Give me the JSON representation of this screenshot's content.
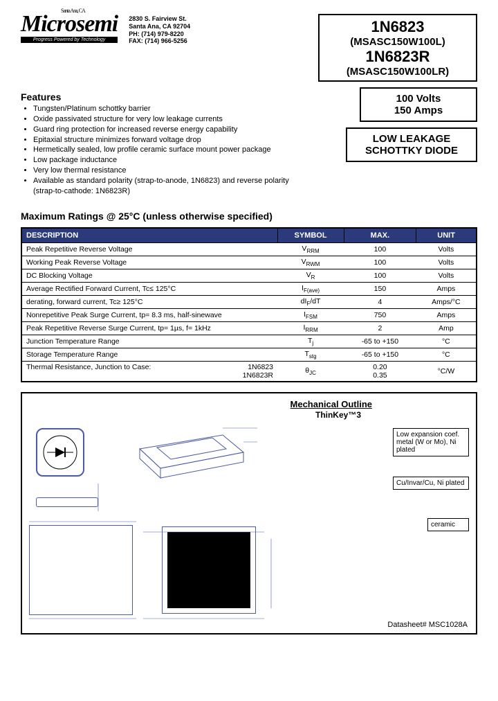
{
  "company": {
    "city_tag": "Santa Ana, CA",
    "name": "Microsemi",
    "tagline": "Progress Powered by Technology",
    "address_l1": "2830 S. Fairview St.",
    "address_l2": "Santa Ana, CA 92704",
    "phone": "PH: (714) 979-8220",
    "fax": "FAX: (714) 966-5256"
  },
  "parts": {
    "p1": "1N6823",
    "p1_alt": "(MSASC150W100L)",
    "p2": "1N6823R",
    "p2_alt": "(MSASC150W100LR)"
  },
  "ratings_brief": {
    "volts": "100 Volts",
    "amps": "150 Amps"
  },
  "device_type_l1": "LOW LEAKAGE",
  "device_type_l2": "SCHOTTKY DIODE",
  "features_heading": "Features",
  "features": [
    "Tungsten/Platinum schottky barrier",
    "Oxide passivated structure for very low leakage currents",
    "Guard ring protection for increased reverse energy capability",
    "Epitaxial structure minimizes forward voltage drop",
    "Hermetically sealed, low profile ceramic surface mount power package",
    "Low package inductance",
    "Very low thermal resistance",
    "Available as standard polarity (strap-to-anode, 1N6823) and reverse polarity (strap-to-cathode: 1N6823R)"
  ],
  "max_ratings_heading": "Maximum Ratings @ 25°C (unless otherwise specified)",
  "table": {
    "columns": [
      "DESCRIPTION",
      "SYMBOL",
      "MAX.",
      "UNIT"
    ],
    "header_bg": "#2a3a7a",
    "header_fg": "#ffffff",
    "rows": [
      {
        "desc": "Peak Repetitive Reverse Voltage",
        "sym": "V",
        "sub": "RRM",
        "max": "100",
        "unit": "Volts"
      },
      {
        "desc": "Working Peak Reverse Voltage",
        "sym": "V",
        "sub": "RWM",
        "max": "100",
        "unit": "Volts"
      },
      {
        "desc": "DC Blocking Voltage",
        "sym": "V",
        "sub": "R",
        "max": "100",
        "unit": "Volts"
      },
      {
        "desc": "Average Rectified Forward Current, Tc≤ 125°C",
        "sym": "I",
        "sub": "F(ave)",
        "max": "150",
        "unit": "Amps"
      },
      {
        "desc": "derating, forward current, Tc≥ 125°C",
        "sym": "dI",
        "sub": "F",
        "sym2": "/dT",
        "max": "4",
        "unit": "Amps/°C"
      },
      {
        "desc": "Nonrepetitive Peak Surge Current, tp= 8.3 ms, half-sinewave",
        "sym": "I",
        "sub": "FSM",
        "max": "750",
        "unit": "Amps"
      },
      {
        "desc": "Peak Repetitive Reverse Surge Current, tp= 1µs, f= 1kHz",
        "sym": "I",
        "sub": "RRM",
        "max": "2",
        "unit": "Amp"
      },
      {
        "desc": "Junction Temperature Range",
        "sym": "T",
        "sub": "j",
        "max": "-65 to +150",
        "unit": "°C"
      },
      {
        "desc": "Storage Temperature Range",
        "sym": "T",
        "sub": "stg",
        "max": "-65 to +150",
        "unit": "°C"
      },
      {
        "desc": "Thermal Resistance, Junction to Case:",
        "desc_r1": "1N6823",
        "desc_r2": "1N6823R",
        "sym": "θ",
        "sub": "JC",
        "max": "0.20",
        "max2": "0.35",
        "unit": "°C/W"
      }
    ]
  },
  "mechanical": {
    "title": "Mechanical Outline",
    "subtitle": "ThinKey™3",
    "materials": [
      "Low expansion coef. metal (W or Mo), Ni plated",
      "Cu/Invar/Cu, Ni plated",
      "ceramic"
    ],
    "diagram_color": "#4a5aa8"
  },
  "datasheet_num": "Datasheet# MSC1028A"
}
